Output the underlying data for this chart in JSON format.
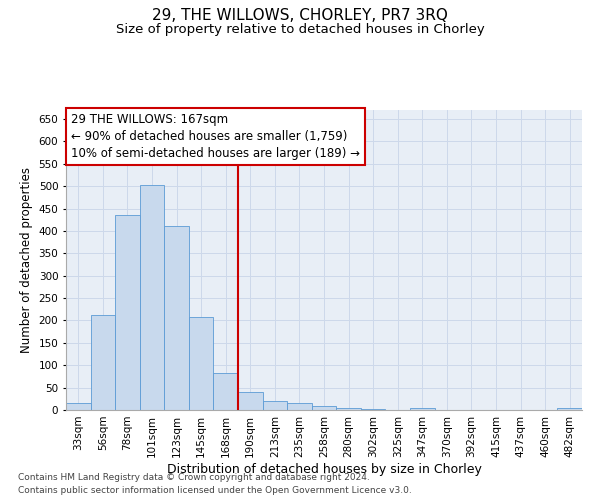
{
  "title1": "29, THE WILLOWS, CHORLEY, PR7 3RQ",
  "title2": "Size of property relative to detached houses in Chorley",
  "xlabel": "Distribution of detached houses by size in Chorley",
  "ylabel": "Number of detached properties",
  "categories": [
    "33sqm",
    "56sqm",
    "78sqm",
    "101sqm",
    "123sqm",
    "145sqm",
    "168sqm",
    "190sqm",
    "213sqm",
    "235sqm",
    "258sqm",
    "280sqm",
    "302sqm",
    "325sqm",
    "347sqm",
    "370sqm",
    "392sqm",
    "415sqm",
    "437sqm",
    "460sqm",
    "482sqm"
  ],
  "values": [
    15,
    212,
    435,
    502,
    410,
    207,
    83,
    40,
    20,
    15,
    10,
    5,
    2,
    1,
    5,
    1,
    1,
    1,
    1,
    1,
    5
  ],
  "bar_color": "#c8d9ed",
  "bar_edge_color": "#5b9bd5",
  "vline_color": "#cc0000",
  "vline_x": 6.5,
  "annotation_line1": "29 THE WILLOWS: 167sqm",
  "annotation_line2": "← 90% of detached houses are smaller (1,759)",
  "annotation_line3": "10% of semi-detached houses are larger (189) →",
  "annotation_box_color": "#ffffff",
  "annotation_box_edge": "#cc0000",
  "ylim": [
    0,
    670
  ],
  "yticks": [
    0,
    50,
    100,
    150,
    200,
    250,
    300,
    350,
    400,
    450,
    500,
    550,
    600,
    650
  ],
  "footer1": "Contains HM Land Registry data © Crown copyright and database right 2024.",
  "footer2": "Contains public sector information licensed under the Open Government Licence v3.0.",
  "title1_fontsize": 11,
  "title2_fontsize": 9.5,
  "xlabel_fontsize": 9,
  "ylabel_fontsize": 8.5,
  "tick_fontsize": 7.5,
  "footer_fontsize": 6.5,
  "annotation_fontsize": 8.5,
  "grid_color": "#cdd8ea",
  "background_color": "#e8eef6"
}
